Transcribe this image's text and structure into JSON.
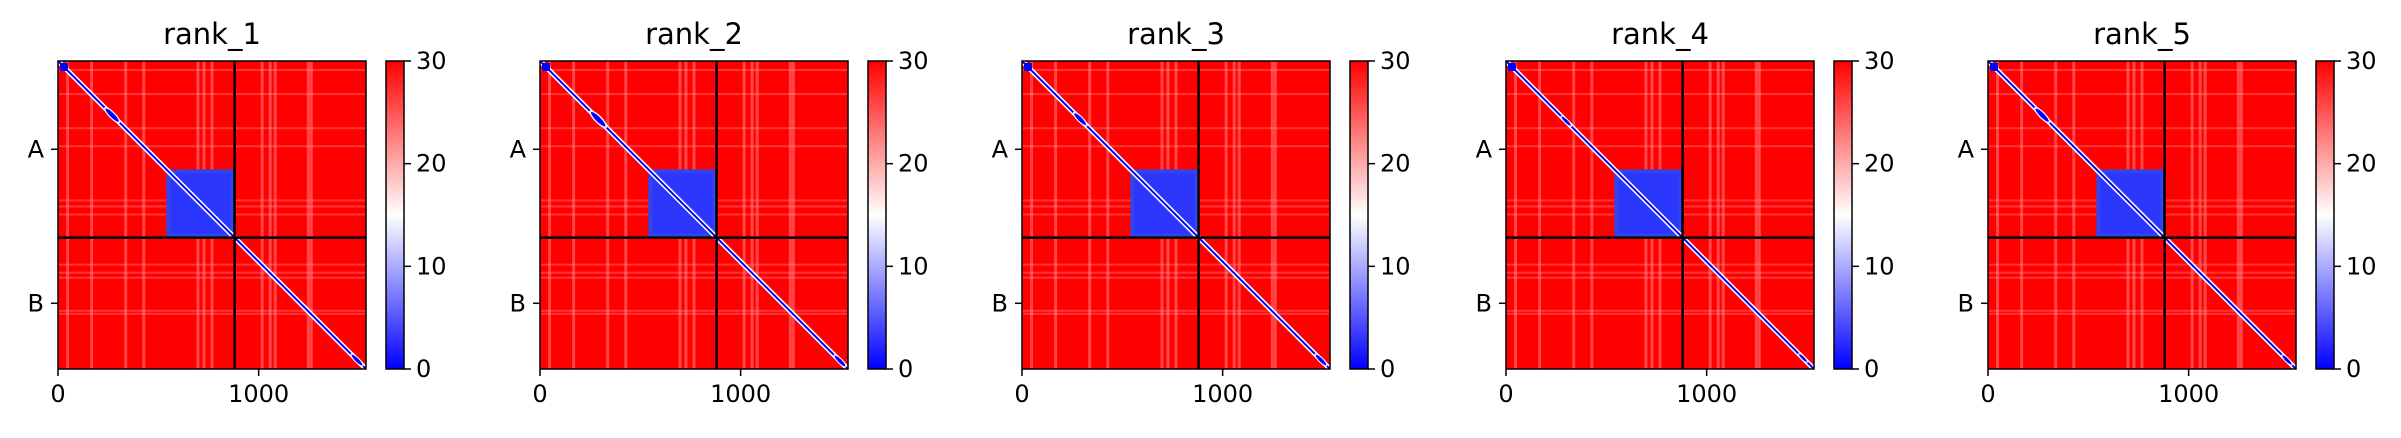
{
  "figure": {
    "background": "#ffffff"
  },
  "colormap": {
    "name": "bwr",
    "low": "#0000ff",
    "mid": "#ffffff",
    "high": "#ff0000",
    "vmin": 0,
    "vmax": 30
  },
  "chart_data": [
    {
      "type": "heatmap",
      "title": "rank_1",
      "x_ticks": [
        0,
        1000
      ],
      "y_ticks": [
        "A",
        "B"
      ],
      "xlim": [
        0,
        1535
      ],
      "chain_boundary": 880,
      "colorbar_ticks": [
        0,
        10,
        20,
        30
      ],
      "diagonal_blobs": [
        {
          "center": 270,
          "size": 50
        },
        {
          "center": 1490,
          "size": 40
        }
      ],
      "low_block": [
        540,
        880
      ]
    },
    {
      "type": "heatmap",
      "title": "rank_2",
      "x_ticks": [
        0,
        1000
      ],
      "y_ticks": [
        "A",
        "B"
      ],
      "xlim": [
        0,
        1535
      ],
      "chain_boundary": 880,
      "colorbar_ticks": [
        0,
        10,
        20,
        30
      ],
      "diagonal_blobs": [
        {
          "center": 290,
          "size": 55
        },
        {
          "center": 1495,
          "size": 40
        }
      ],
      "low_block": [
        540,
        880
      ]
    },
    {
      "type": "heatmap",
      "title": "rank_3",
      "x_ticks": [
        0,
        1000
      ],
      "y_ticks": [
        "A",
        "B"
      ],
      "xlim": [
        0,
        1535
      ],
      "chain_boundary": 880,
      "colorbar_ticks": [
        0,
        10,
        20,
        30
      ],
      "diagonal_blobs": [
        {
          "center": 290,
          "size": 45
        },
        {
          "center": 1490,
          "size": 40
        }
      ],
      "low_block": [
        540,
        880
      ]
    },
    {
      "type": "heatmap",
      "title": "rank_4",
      "x_ticks": [
        0,
        1000
      ],
      "y_ticks": [
        "A",
        "B"
      ],
      "xlim": [
        0,
        1535
      ],
      "chain_boundary": 880,
      "colorbar_ticks": [
        0,
        10,
        20,
        30
      ],
      "diagonal_blobs": [
        {
          "center": 300,
          "size": 35
        },
        {
          "center": 1480,
          "size": 30
        }
      ],
      "low_block": [
        540,
        880
      ]
    },
    {
      "type": "heatmap",
      "title": "rank_5",
      "x_ticks": [
        0,
        1000
      ],
      "y_ticks": [
        "A",
        "B"
      ],
      "xlim": [
        0,
        1535
      ],
      "chain_boundary": 880,
      "colorbar_ticks": [
        0,
        10,
        20,
        30
      ],
      "diagonal_blobs": [
        {
          "center": 270,
          "size": 50
        },
        {
          "center": 1490,
          "size": 35
        }
      ],
      "low_block": [
        540,
        880
      ]
    }
  ]
}
